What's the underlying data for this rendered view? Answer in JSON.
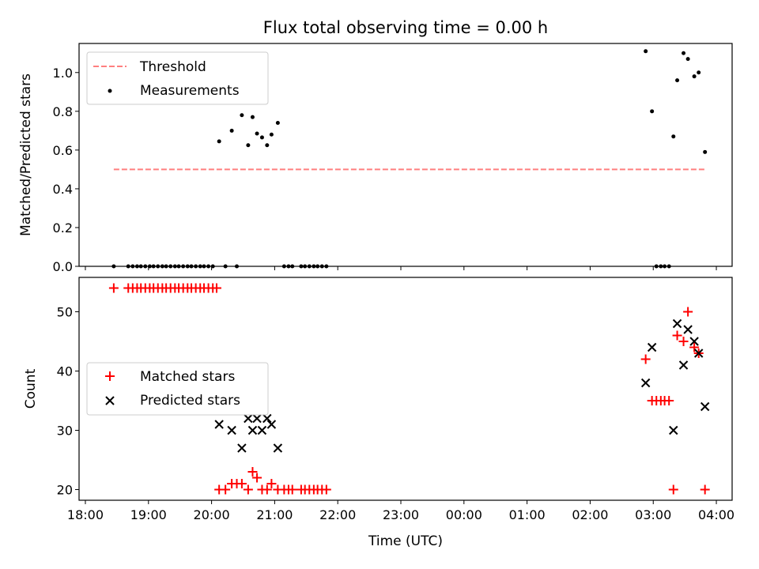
{
  "title": "Flux total observing time = 0.00 h",
  "colors": {
    "threshold": "#ff7f7f",
    "measurements": "#000000",
    "matched": "#ff0000",
    "predicted": "#000000"
  },
  "chart_data": [
    {
      "type": "scatter",
      "title": "Flux total observing time = 0.00 h",
      "xlabel": "",
      "ylabel": "Matched/Predicted stars",
      "ylim": [
        0,
        1.15
      ],
      "xlim": [
        17.9,
        28.25
      ],
      "yticks": [
        0.0,
        0.2,
        0.4,
        0.6,
        0.8,
        1.0
      ],
      "ytick_labels": [
        "0.0",
        "0.2",
        "0.4",
        "0.6",
        "0.8",
        "1.0"
      ],
      "grid": false,
      "legend_position": "top-left",
      "threshold": {
        "name": "Threshold",
        "value": 0.5,
        "x": [
          18.45,
          27.82
        ]
      },
      "series": [
        {
          "name": "Measurements",
          "marker": "dot",
          "x": [
            18.45,
            18.68,
            18.75,
            18.82,
            18.88,
            18.95,
            19.02,
            19.08,
            19.15,
            19.22,
            19.28,
            19.35,
            19.42,
            19.48,
            19.55,
            19.62,
            19.68,
            19.75,
            19.82,
            19.88,
            19.95,
            20.02,
            20.12,
            20.22,
            20.32,
            20.4,
            20.48,
            20.58,
            20.65,
            20.72,
            20.8,
            20.88,
            20.95,
            21.05,
            21.15,
            21.22,
            21.28,
            21.42,
            21.48,
            21.55,
            21.62,
            21.68,
            21.75,
            21.82,
            26.88,
            26.98,
            27.05,
            27.12,
            27.18,
            27.25,
            27.32,
            27.38,
            27.48,
            27.55,
            27.65,
            27.72,
            27.82
          ],
          "y": [
            0,
            0,
            0,
            0,
            0,
            0,
            0,
            0,
            0,
            0,
            0,
            0,
            0,
            0,
            0,
            0,
            0,
            0,
            0,
            0,
            0,
            0,
            0.645,
            0,
            0.7,
            0,
            0.78,
            0.625,
            0.77,
            0.685,
            0.665,
            0.625,
            0.68,
            0.74,
            0,
            0,
            0,
            0,
            0,
            0,
            0,
            0,
            0,
            0,
            1.11,
            0.8,
            0,
            0,
            0,
            0,
            0.67,
            0.96,
            1.1,
            1.07,
            0.98,
            1.0,
            0.59
          ]
        }
      ]
    },
    {
      "type": "scatter",
      "xlabel": "Time (UTC)",
      "ylabel": "Count",
      "ylim": [
        18.2,
        55.8
      ],
      "xlim": [
        17.9,
        28.25
      ],
      "yticks": [
        20,
        30,
        40,
        50
      ],
      "ytick_labels": [
        "20",
        "30",
        "40",
        "50"
      ],
      "xticks": [
        18,
        19,
        20,
        21,
        22,
        23,
        24,
        25,
        26,
        27,
        28
      ],
      "xtick_labels": [
        "18:00",
        "19:00",
        "20:00",
        "21:00",
        "22:00",
        "23:00",
        "00:00",
        "01:00",
        "02:00",
        "03:00",
        "04:00"
      ],
      "grid": false,
      "legend_position": "center-left",
      "series": [
        {
          "name": "Matched stars",
          "marker": "plus",
          "x": [
            18.45,
            18.68,
            18.75,
            18.82,
            18.88,
            18.95,
            19.02,
            19.08,
            19.15,
            19.22,
            19.28,
            19.35,
            19.42,
            19.48,
            19.55,
            19.62,
            19.68,
            19.75,
            19.82,
            19.88,
            19.95,
            20.02,
            20.08,
            20.12,
            20.22,
            20.32,
            20.4,
            20.48,
            20.58,
            20.65,
            20.72,
            20.8,
            20.88,
            20.95,
            21.05,
            21.15,
            21.22,
            21.28,
            21.42,
            21.48,
            21.55,
            21.62,
            21.68,
            21.75,
            21.82,
            26.88,
            26.98,
            27.05,
            27.12,
            27.18,
            27.25,
            27.32,
            27.38,
            27.48,
            27.55,
            27.65,
            27.72,
            27.82
          ],
          "y": [
            54,
            54,
            54,
            54,
            54,
            54,
            54,
            54,
            54,
            54,
            54,
            54,
            54,
            54,
            54,
            54,
            54,
            54,
            54,
            54,
            54,
            54,
            54,
            20,
            20,
            21,
            21,
            21,
            20,
            23,
            22,
            20,
            20,
            21,
            20,
            20,
            20,
            20,
            20,
            20,
            20,
            20,
            20,
            20,
            20,
            42,
            35,
            35,
            35,
            35,
            35,
            20,
            46,
            45,
            50,
            44,
            43,
            20
          ]
        },
        {
          "name": "Predicted stars",
          "marker": "x",
          "x": [
            20.12,
            20.32,
            20.48,
            20.58,
            20.65,
            20.72,
            20.8,
            20.88,
            20.95,
            21.05,
            26.88,
            26.98,
            27.32,
            27.38,
            27.48,
            27.55,
            27.65,
            27.72,
            27.82
          ],
          "y": [
            31,
            30,
            27,
            32,
            30,
            32,
            30,
            32,
            31,
            27,
            38,
            44,
            30,
            48,
            41,
            47,
            45,
            43,
            34
          ]
        }
      ]
    }
  ]
}
